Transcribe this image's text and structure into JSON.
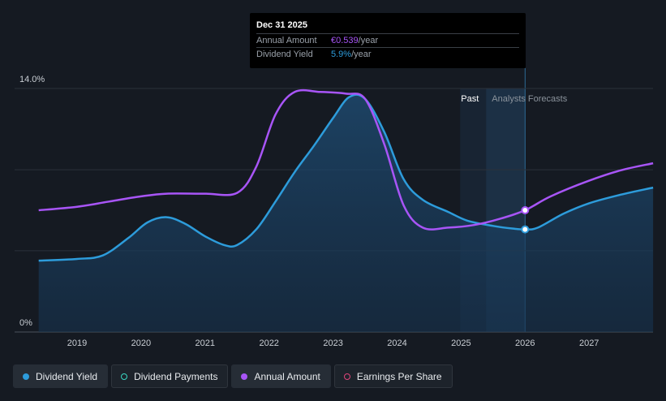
{
  "tooltip": {
    "date": "Dec 31 2025",
    "rows": [
      {
        "label": "Annual Amount",
        "value": "€0.539",
        "unit": "/year",
        "color": "#a855f7"
      },
      {
        "label": "Dividend Yield",
        "value": "5.9%",
        "unit": "/year",
        "color": "#2d9cdb"
      }
    ]
  },
  "legend": [
    {
      "label": "Dividend Yield",
      "color": "#2d9cdb",
      "filled": true
    },
    {
      "label": "Dividend Payments",
      "color": "#3ad6c2",
      "filled": false
    },
    {
      "label": "Annual Amount",
      "color": "#a855f7",
      "filled": true
    },
    {
      "label": "Earnings Per Share",
      "color": "#e0457b",
      "filled": false
    }
  ],
  "chart_data": {
    "type": "line",
    "ylim": [
      0,
      14
    ],
    "y_tick_labels": [
      "14.0%",
      "0%"
    ],
    "x_tick_labels": [
      "2019",
      "2020",
      "2021",
      "2022",
      "2023",
      "2024",
      "2025",
      "2026",
      "2027"
    ],
    "past_label": "Past",
    "forecast_label": "Analysts Forecasts",
    "divider_x": 2026.0,
    "series": [
      {
        "name": "Dividend Yield",
        "color": "#2d9cdb",
        "area": true,
        "points": [
          [
            2018.4,
            4.1
          ],
          [
            2019.0,
            4.2
          ],
          [
            2019.4,
            4.4
          ],
          [
            2019.8,
            5.4
          ],
          [
            2020.1,
            6.3
          ],
          [
            2020.4,
            6.6
          ],
          [
            2020.7,
            6.2
          ],
          [
            2021.0,
            5.5
          ],
          [
            2021.3,
            5.0
          ],
          [
            2021.5,
            5.0
          ],
          [
            2021.8,
            5.9
          ],
          [
            2022.1,
            7.5
          ],
          [
            2022.4,
            9.2
          ],
          [
            2022.7,
            10.7
          ],
          [
            2023.0,
            12.3
          ],
          [
            2023.25,
            13.5
          ],
          [
            2023.5,
            13.4
          ],
          [
            2023.8,
            11.5
          ],
          [
            2024.1,
            8.8
          ],
          [
            2024.4,
            7.6
          ],
          [
            2024.8,
            6.9
          ],
          [
            2025.1,
            6.4
          ],
          [
            2025.5,
            6.1
          ],
          [
            2025.8,
            5.95
          ],
          [
            2026.0,
            5.9
          ],
          [
            2026.2,
            6.0
          ],
          [
            2026.6,
            6.8
          ],
          [
            2027.0,
            7.4
          ],
          [
            2027.5,
            7.9
          ],
          [
            2028.0,
            8.3
          ]
        ]
      },
      {
        "name": "Annual Amount",
        "color": "#a855f7",
        "area": false,
        "points": [
          [
            2018.4,
            7.0
          ],
          [
            2019.0,
            7.2
          ],
          [
            2019.5,
            7.5
          ],
          [
            2020.0,
            7.8
          ],
          [
            2020.4,
            7.95
          ],
          [
            2021.0,
            7.95
          ],
          [
            2021.5,
            8.0
          ],
          [
            2021.8,
            9.5
          ],
          [
            2022.1,
            12.5
          ],
          [
            2022.4,
            13.8
          ],
          [
            2022.8,
            13.8
          ],
          [
            2023.2,
            13.7
          ],
          [
            2023.5,
            13.4
          ],
          [
            2023.8,
            10.8
          ],
          [
            2024.1,
            7.3
          ],
          [
            2024.4,
            6.0
          ],
          [
            2024.8,
            6.0
          ],
          [
            2025.2,
            6.15
          ],
          [
            2025.6,
            6.5
          ],
          [
            2026.0,
            7.0
          ],
          [
            2026.4,
            7.8
          ],
          [
            2027.0,
            8.7
          ],
          [
            2027.5,
            9.3
          ],
          [
            2028.0,
            9.7
          ]
        ]
      }
    ],
    "highlight_points": [
      {
        "series": "Annual Amount",
        "x": 2026.0,
        "y": 7.0
      },
      {
        "series": "Dividend Yield",
        "x": 2026.0,
        "y": 5.9
      }
    ]
  }
}
